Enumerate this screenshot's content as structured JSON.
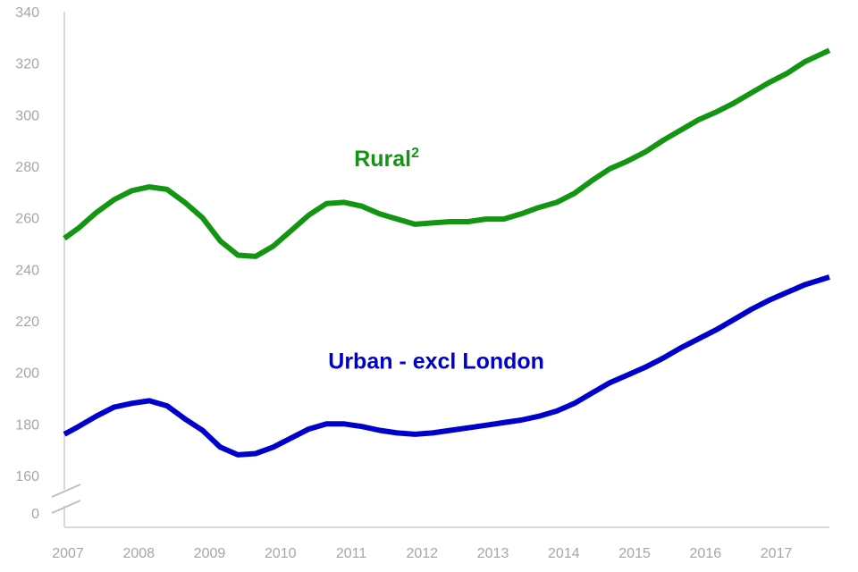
{
  "chart_data": {
    "type": "line",
    "title": "",
    "xlabel": "",
    "ylabel": "",
    "y_broken_axis": true,
    "ylim": [
      160,
      340
    ],
    "y_ticks": [
      160,
      180,
      200,
      220,
      240,
      260,
      280,
      300,
      320,
      340
    ],
    "y_break_tick": 0,
    "x_ticks": [
      2007,
      2008,
      2009,
      2010,
      2011,
      2012,
      2013,
      2014,
      2015,
      2016,
      2017
    ],
    "xlim": [
      2007,
      2017.8
    ],
    "grid": false,
    "legend": "none",
    "series": [
      {
        "name": "Rural",
        "name_superscript": "2",
        "color": "#129612",
        "x": [
          2007,
          2007.2,
          2007.45,
          2007.7,
          2007.95,
          2008.2,
          2008.45,
          2008.7,
          2008.95,
          2009.2,
          2009.45,
          2009.7,
          2009.95,
          2010.2,
          2010.45,
          2010.7,
          2010.95,
          2011.2,
          2011.45,
          2011.7,
          2011.95,
          2012.2,
          2012.45,
          2012.7,
          2012.95,
          2013.2,
          2013.45,
          2013.7,
          2013.95,
          2014.2,
          2014.45,
          2014.7,
          2014.95,
          2015.2,
          2015.45,
          2015.7,
          2015.95,
          2016.2,
          2016.45,
          2016.7,
          2016.95,
          2017.2,
          2017.45,
          2017.8
        ],
        "values": [
          252,
          256,
          262,
          267,
          270.5,
          272,
          271,
          266,
          260,
          251,
          245.5,
          245,
          249,
          255,
          261,
          265.5,
          266,
          264.5,
          261.5,
          259.5,
          257.5,
          258,
          258.5,
          258.5,
          259.5,
          259.5,
          261.5,
          264,
          266,
          269.5,
          274.5,
          279,
          282,
          285.5,
          290,
          294,
          298,
          301,
          304.5,
          308.5,
          312.5,
          316,
          320.5,
          325
        ]
      },
      {
        "name": "Urban - excl London",
        "color": "#0000cc",
        "x": [
          2007,
          2007.2,
          2007.45,
          2007.7,
          2007.95,
          2008.2,
          2008.45,
          2008.7,
          2008.95,
          2009.2,
          2009.45,
          2009.7,
          2009.95,
          2010.2,
          2010.45,
          2010.7,
          2010.95,
          2011.2,
          2011.45,
          2011.7,
          2011.95,
          2012.2,
          2012.45,
          2012.7,
          2012.95,
          2013.2,
          2013.45,
          2013.7,
          2013.95,
          2014.2,
          2014.45,
          2014.7,
          2014.95,
          2015.2,
          2015.45,
          2015.7,
          2015.95,
          2016.2,
          2016.45,
          2016.7,
          2016.95,
          2017.2,
          2017.45,
          2017.8
        ],
        "values": [
          176,
          179,
          183,
          186.5,
          188,
          189,
          187,
          182,
          177.5,
          171,
          168,
          168.5,
          171,
          174.5,
          178,
          180,
          180,
          179,
          177.5,
          176.5,
          176,
          176.5,
          177.5,
          178.5,
          179.5,
          180.5,
          181.5,
          183,
          185,
          188,
          192,
          196,
          199,
          202,
          205.5,
          209.5,
          213,
          216.5,
          220.5,
          224.5,
          228,
          231,
          234,
          237
        ]
      }
    ],
    "annotations": [
      {
        "series": 0,
        "text": "Rural",
        "superscript": "2",
        "at_x": 2011.55,
        "at_y": 280
      },
      {
        "series": 1,
        "text": "Urban - excl London",
        "at_x": 2012.25,
        "at_y": 201.5
      }
    ]
  }
}
